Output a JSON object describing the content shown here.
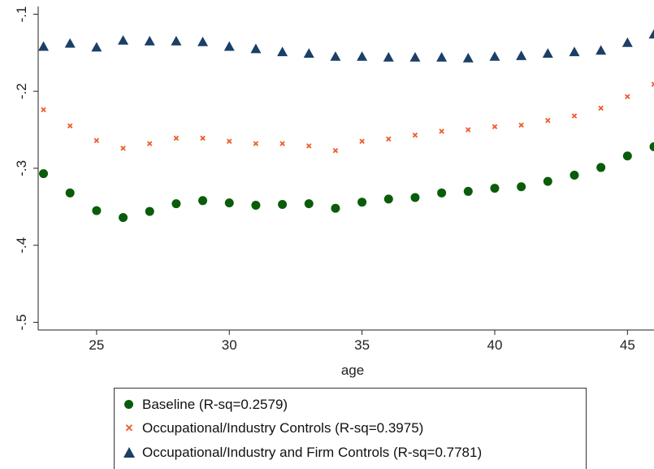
{
  "chart_data": {
    "type": "scatter",
    "xlabel": "age",
    "ylabel": "",
    "xlim": [
      22.8,
      46
    ],
    "ylim": [
      -0.51,
      -0.09
    ],
    "x_ticks": [
      25,
      30,
      35,
      40,
      45
    ],
    "x_tick_labels": [
      "25",
      "30",
      "35",
      "40",
      "45"
    ],
    "y_ticks": [
      -0.1,
      -0.2,
      -0.3,
      -0.4,
      -0.5
    ],
    "y_tick_labels": [
      "-.1",
      "-.2",
      "-.3",
      "-.4",
      "-.5"
    ],
    "grid": false,
    "legend_position": "bottom",
    "x": [
      23,
      24,
      25,
      26,
      27,
      28,
      29,
      30,
      31,
      32,
      33,
      34,
      35,
      36,
      37,
      38,
      39,
      40,
      41,
      42,
      43,
      44,
      45,
      46
    ],
    "series": [
      {
        "name": "Baseline (R-sq=0.2579)",
        "marker": "circle",
        "color": "#0a5c0a",
        "values": [
          -0.307,
          -0.332,
          -0.355,
          -0.364,
          -0.356,
          -0.346,
          -0.342,
          -0.345,
          -0.348,
          -0.347,
          -0.346,
          -0.352,
          -0.344,
          -0.34,
          -0.338,
          -0.332,
          -0.33,
          -0.326,
          -0.324,
          -0.317,
          -0.309,
          -0.299,
          -0.284,
          -0.272
        ]
      },
      {
        "name": "Occupational/Industry Controls (R-sq=0.3975)",
        "marker": "x",
        "color": "#f05a28",
        "values": [
          -0.224,
          -0.245,
          -0.264,
          -0.274,
          -0.268,
          -0.261,
          -0.261,
          -0.265,
          -0.268,
          -0.268,
          -0.271,
          -0.277,
          -0.265,
          -0.262,
          -0.257,
          -0.252,
          -0.25,
          -0.246,
          -0.244,
          -0.238,
          -0.232,
          -0.222,
          -0.207,
          -0.191
        ]
      },
      {
        "name": "Occupational/Industry and Firm Controls (R-sq=0.7781)",
        "marker": "triangle",
        "color": "#1b3f66",
        "values": [
          -0.142,
          -0.138,
          -0.143,
          -0.134,
          -0.135,
          -0.135,
          -0.136,
          -0.142,
          -0.145,
          -0.149,
          -0.151,
          -0.155,
          -0.155,
          -0.156,
          -0.156,
          -0.156,
          -0.157,
          -0.155,
          -0.154,
          -0.151,
          -0.149,
          -0.147,
          -0.137,
          -0.126
        ]
      }
    ]
  }
}
